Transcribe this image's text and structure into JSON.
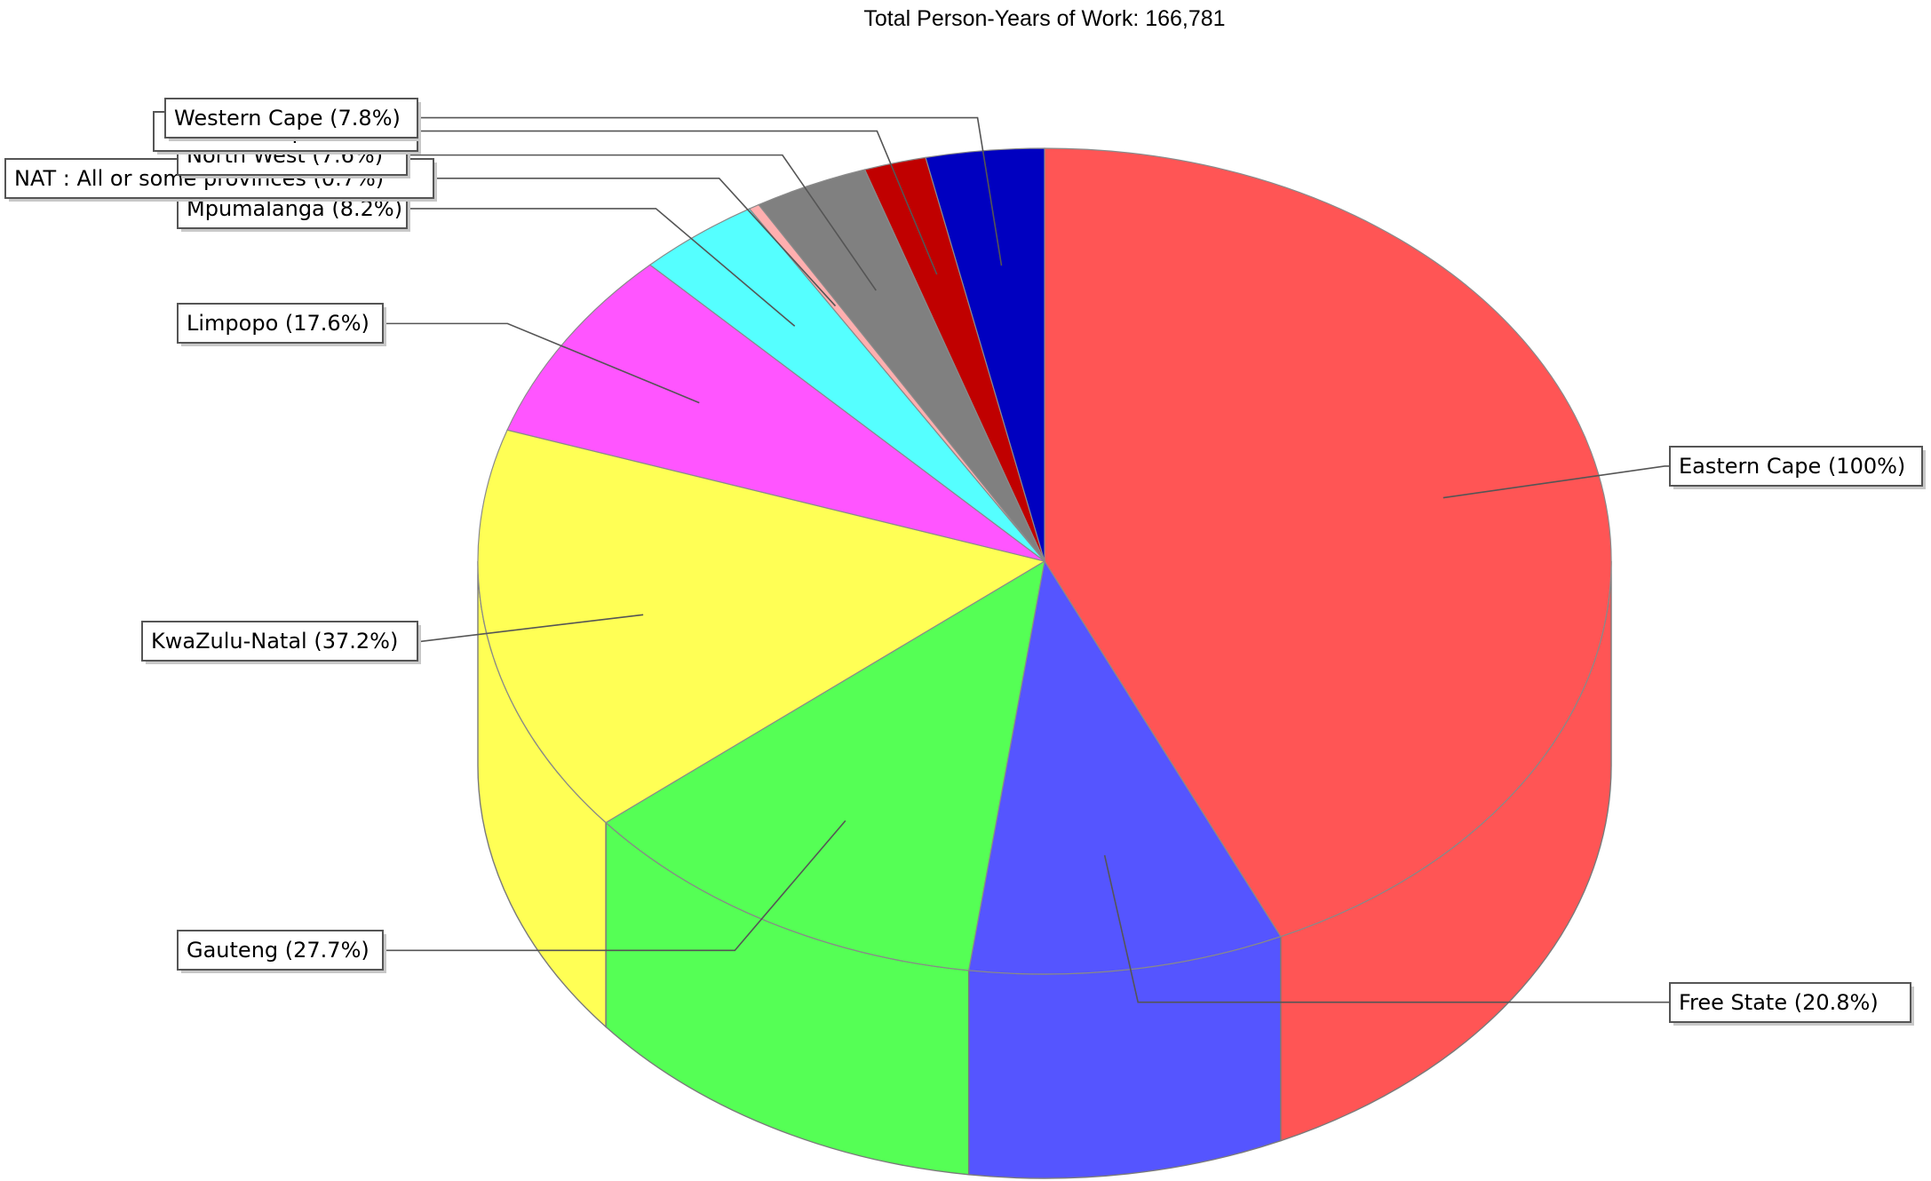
{
  "chart_data": {
    "type": "pie",
    "title": "Total Person-Years of Work: 166,781",
    "slices": [
      {
        "label": "Eastern Cape",
        "pct_text": "(100%)",
        "value": 100,
        "color": "#ff5555"
      },
      {
        "label": "Free State",
        "pct_text": "(20.8%)",
        "value": 20.8,
        "color": "#5555ff"
      },
      {
        "label": "Gauteng",
        "pct_text": "(27.7%)",
        "value": 27.7,
        "color": "#55ff55"
      },
      {
        "label": "KwaZulu-Natal",
        "pct_text": "(37.2%)",
        "value": 37.2,
        "color": "#ffff55"
      },
      {
        "label": "Limpopo",
        "pct_text": "(17.6%)",
        "value": 17.6,
        "color": "#ff55ff"
      },
      {
        "label": "Mpumalanga",
        "pct_text": "(8.2%)",
        "value": 8.2,
        "color": "#55ffff"
      },
      {
        "label": "NAT : All or some provinces",
        "pct_text": "(0.7%)",
        "value": 0.7,
        "color": "#ffafaf"
      },
      {
        "label": "North West",
        "pct_text": "(7.6%)",
        "value": 7.6,
        "color": "#808080"
      },
      {
        "label": "Northern Cape",
        "pct_text": "(4.1%)",
        "value": 4.1,
        "color": "#c00000"
      },
      {
        "label": "Western Cape",
        "pct_text": "(7.8%)",
        "value": 7.8,
        "color": "#0000c0"
      }
    ],
    "style": "3d-pie",
    "legend": "none",
    "grid": false
  }
}
